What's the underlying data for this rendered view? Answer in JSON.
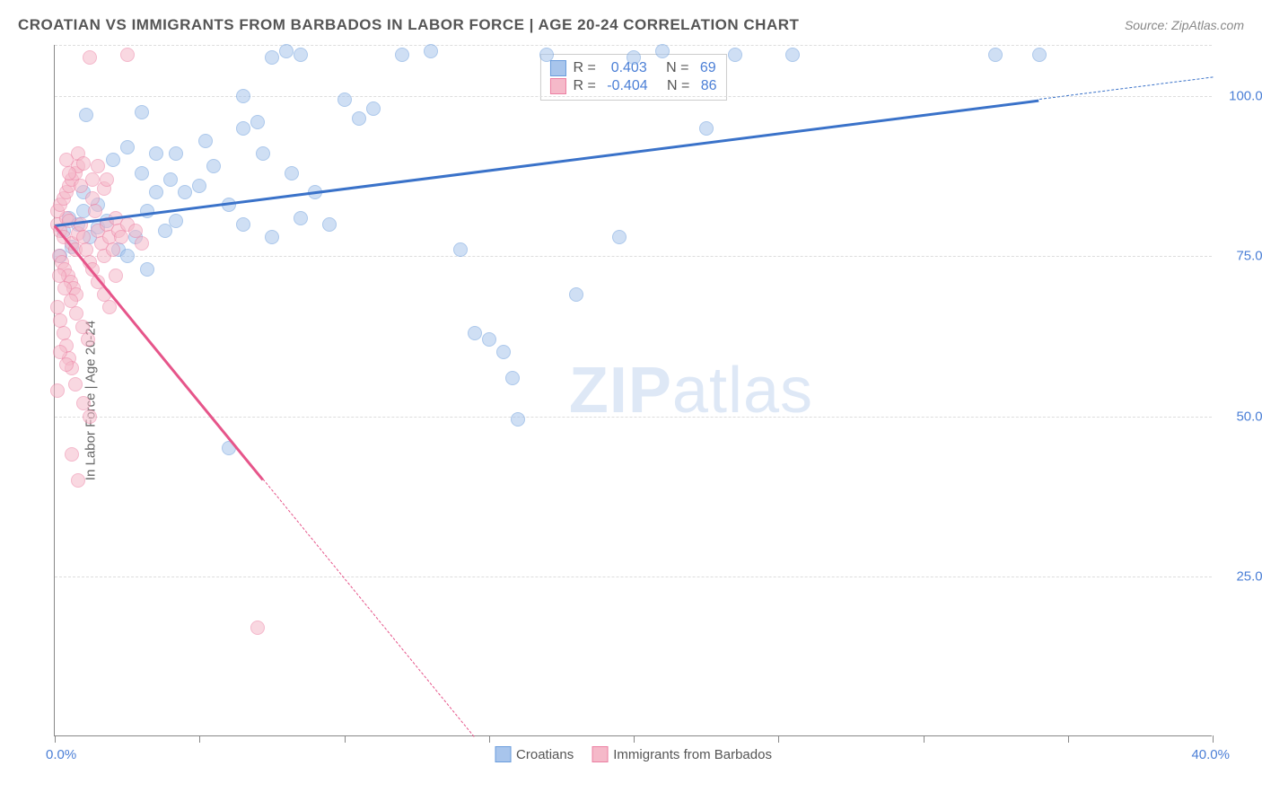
{
  "title": "CROATIAN VS IMMIGRANTS FROM BARBADOS IN LABOR FORCE | AGE 20-24 CORRELATION CHART",
  "source": "Source: ZipAtlas.com",
  "y_axis_label": "In Labor Force | Age 20-24",
  "watermark_bold": "ZIP",
  "watermark_light": "atlas",
  "chart": {
    "type": "scatter",
    "background": "#ffffff",
    "grid_color": "#dddddd",
    "axis_color": "#888888",
    "text_color": "#555555",
    "value_color": "#4b7fd6",
    "xlim": [
      0,
      40
    ],
    "ylim": [
      0,
      108
    ],
    "x_ticks": [
      0,
      5,
      10,
      15,
      20,
      25,
      30,
      35,
      40
    ],
    "x_tick_labels": {
      "left": "0.0%",
      "right": "40.0%"
    },
    "y_gridlines": [
      25,
      50,
      75,
      100,
      108
    ],
    "y_tick_labels": {
      "25": "25.0%",
      "50": "50.0%",
      "75": "75.0%",
      "100": "100.0%"
    },
    "series": [
      {
        "name": "Croatians",
        "color_fill": "#a8c5ec",
        "color_stroke": "#6a9cdc",
        "trend_color": "#3a72c9",
        "R": "0.403",
        "N": "69",
        "trend": {
          "x1": 0,
          "y1": 80,
          "x2": 40,
          "y2": 103
        },
        "trend_solid_range": [
          0,
          34
        ],
        "points": [
          [
            0.3,
            79
          ],
          [
            0.5,
            81
          ],
          [
            0.8,
            80
          ],
          [
            1.0,
            82
          ],
          [
            1.2,
            78
          ],
          [
            1.5,
            79.5
          ],
          [
            1.8,
            80.5
          ],
          [
            0.2,
            75
          ],
          [
            0.6,
            76.5
          ],
          [
            1.0,
            85
          ],
          [
            1.5,
            83
          ],
          [
            2.0,
            90
          ],
          [
            2.5,
            92
          ],
          [
            3.0,
            88
          ],
          [
            3.5,
            91
          ],
          [
            4.0,
            87
          ],
          [
            4.5,
            85
          ],
          [
            2.2,
            76
          ],
          [
            2.8,
            78
          ],
          [
            3.2,
            82
          ],
          [
            3.8,
            79
          ],
          [
            4.2,
            80.5
          ],
          [
            5.0,
            86
          ],
          [
            5.5,
            89
          ],
          [
            6.0,
            83
          ],
          [
            6.5,
            95
          ],
          [
            7.0,
            96
          ],
          [
            7.5,
            106
          ],
          [
            8.0,
            107
          ],
          [
            8.5,
            106.5
          ],
          [
            9.0,
            85
          ],
          [
            9.5,
            80
          ],
          [
            10.0,
            99.5
          ],
          [
            10.5,
            96.5
          ],
          [
            11.0,
            98
          ],
          [
            12.0,
            106.5
          ],
          [
            13.0,
            107
          ],
          [
            14.0,
            76
          ],
          [
            14.5,
            63
          ],
          [
            15.0,
            62
          ],
          [
            15.5,
            60
          ],
          [
            16.0,
            49.5
          ],
          [
            15.8,
            56
          ],
          [
            17.0,
            106.5
          ],
          [
            18.0,
            69
          ],
          [
            19.5,
            78
          ],
          [
            20.0,
            106
          ],
          [
            21.0,
            107
          ],
          [
            22.5,
            95
          ],
          [
            23.5,
            106.5
          ],
          [
            25.5,
            106.5
          ],
          [
            32.5,
            106.5
          ],
          [
            34.0,
            106.5
          ],
          [
            4.2,
            91
          ],
          [
            5.2,
            93
          ],
          [
            3.0,
            97.5
          ],
          [
            7.2,
            91
          ],
          [
            8.2,
            88
          ],
          [
            6.5,
            80
          ],
          [
            7.5,
            78
          ],
          [
            2.5,
            75
          ],
          [
            3.5,
            85
          ],
          [
            6.0,
            45
          ],
          [
            3.2,
            73
          ],
          [
            8.5,
            81
          ],
          [
            6.5,
            100
          ],
          [
            1.1,
            97
          ]
        ]
      },
      {
        "name": "Immigrants from Barbados",
        "color_fill": "#f5b9c9",
        "color_stroke": "#ec7fa2",
        "trend_color": "#e6558a",
        "R": "-0.404",
        "N": "86",
        "trend": {
          "x1": 0,
          "y1": 80,
          "x2": 14.5,
          "y2": 0
        },
        "trend_solid_range": [
          0,
          7.2
        ],
        "points": [
          [
            0.1,
            80
          ],
          [
            0.2,
            79
          ],
          [
            0.3,
            78
          ],
          [
            0.4,
            81
          ],
          [
            0.5,
            80.5
          ],
          [
            0.6,
            77
          ],
          [
            0.7,
            76
          ],
          [
            0.8,
            78.5
          ],
          [
            0.15,
            75
          ],
          [
            0.25,
            74
          ],
          [
            0.35,
            73
          ],
          [
            0.45,
            72
          ],
          [
            0.55,
            71
          ],
          [
            0.65,
            70
          ],
          [
            0.75,
            69
          ],
          [
            0.1,
            82
          ],
          [
            0.2,
            83
          ],
          [
            0.3,
            84
          ],
          [
            0.4,
            85
          ],
          [
            0.5,
            86
          ],
          [
            0.6,
            87
          ],
          [
            0.7,
            88
          ],
          [
            0.8,
            89
          ],
          [
            0.1,
            67
          ],
          [
            0.2,
            65
          ],
          [
            0.3,
            63
          ],
          [
            0.4,
            61
          ],
          [
            0.5,
            59
          ],
          [
            0.6,
            57.5
          ],
          [
            0.7,
            55
          ],
          [
            0.9,
            80
          ],
          [
            1.0,
            78
          ],
          [
            1.1,
            76
          ],
          [
            1.2,
            74
          ],
          [
            1.3,
            84
          ],
          [
            1.4,
            82
          ],
          [
            1.5,
            79
          ],
          [
            1.6,
            77
          ],
          [
            1.7,
            75
          ],
          [
            1.8,
            80
          ],
          [
            1.9,
            78
          ],
          [
            2.0,
            76
          ],
          [
            2.1,
            81
          ],
          [
            2.2,
            79
          ],
          [
            0.5,
            88
          ],
          [
            0.9,
            86
          ],
          [
            1.3,
            87
          ],
          [
            1.7,
            85.5
          ],
          [
            0.4,
            90
          ],
          [
            0.8,
            91
          ],
          [
            0.2,
            60
          ],
          [
            0.4,
            58
          ],
          [
            0.6,
            44
          ],
          [
            0.8,
            40
          ],
          [
            1.0,
            52
          ],
          [
            1.2,
            50
          ],
          [
            0.15,
            72
          ],
          [
            0.35,
            70
          ],
          [
            0.55,
            68
          ],
          [
            0.75,
            66
          ],
          [
            0.95,
            64
          ],
          [
            1.15,
            62
          ],
          [
            1.3,
            73
          ],
          [
            1.5,
            71
          ],
          [
            1.7,
            69
          ],
          [
            1.9,
            67
          ],
          [
            2.1,
            72
          ],
          [
            2.3,
            78
          ],
          [
            2.5,
            80
          ],
          [
            2.8,
            79
          ],
          [
            3.0,
            77
          ],
          [
            1.5,
            89
          ],
          [
            1.0,
            89.5
          ],
          [
            1.8,
            87
          ],
          [
            7.0,
            17
          ],
          [
            1.2,
            106
          ],
          [
            2.5,
            106.5
          ],
          [
            0.1,
            54
          ]
        ]
      }
    ]
  },
  "legend": {
    "items": [
      {
        "label": "Croatians",
        "fill": "#a8c5ec",
        "stroke": "#6a9cdc"
      },
      {
        "label": "Immigrants from Barbados",
        "fill": "#f5b9c9",
        "stroke": "#ec7fa2"
      }
    ]
  },
  "stats_box": {
    "rows": [
      {
        "fill": "#a8c5ec",
        "stroke": "#6a9cdc",
        "r_label": "R =",
        "r_val": "  0.403",
        "n_label": "   N =",
        "n_val": " 69"
      },
      {
        "fill": "#f5b9c9",
        "stroke": "#ec7fa2",
        "r_label": "R =",
        "r_val": " -0.404",
        "n_label": "   N =",
        "n_val": " 86"
      }
    ]
  }
}
